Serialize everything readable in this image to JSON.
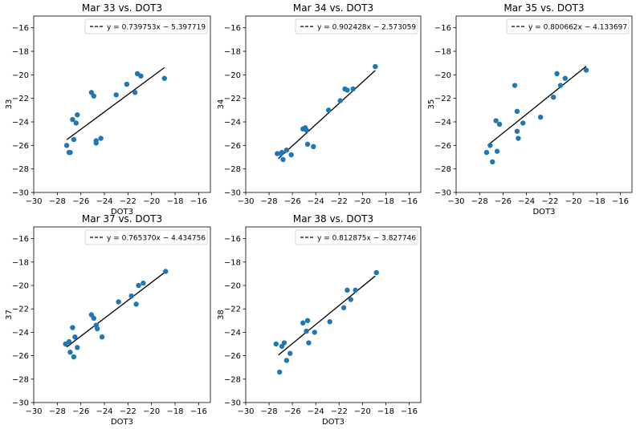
{
  "chart_data": [
    {
      "type": "scatter",
      "title": "Mar 33 vs. DOT3",
      "xlabel": "DOT3",
      "ylabel": "33",
      "xlim": [
        -30,
        -15
      ],
      "ylim": [
        -30,
        -15
      ],
      "xticks": [
        "−30",
        "−28",
        "−26",
        "−24",
        "−22",
        "−20",
        "−18",
        "−16"
      ],
      "yticks": [
        "−30",
        "−28",
        "−26",
        "−24",
        "−22",
        "−20",
        "−18",
        "−16"
      ],
      "grid": false,
      "legend_position": "top-right",
      "fit": {
        "slope": 0.739753,
        "intercept": -5.397719,
        "label": "y = 0.739753x − 5.397719",
        "x_range": [
          -27.2,
          -18.9
        ]
      },
      "points": {
        "x": [
          -27.2,
          -27.0,
          -26.9,
          -26.7,
          -26.6,
          -26.4,
          -26.3,
          -25.1,
          -24.9,
          -24.7,
          -24.7,
          -24.3,
          -23.0,
          -22.1,
          -21.4,
          -21.2,
          -20.9,
          -18.9
        ],
        "y": [
          -26.0,
          -26.6,
          -26.6,
          -23.8,
          -25.5,
          -24.1,
          -23.4,
          -21.5,
          -21.8,
          -25.6,
          -25.8,
          -25.4,
          -21.7,
          -20.8,
          -21.5,
          -19.9,
          -20.1,
          -20.3
        ]
      }
    },
    {
      "type": "scatter",
      "title": "Mar 34 vs. DOT3",
      "xlabel": "",
      "ylabel": "34",
      "xlim": [
        -30,
        -15
      ],
      "ylim": [
        -30,
        -15
      ],
      "xticks": [
        "−30",
        "−28",
        "−26",
        "−24",
        "−22",
        "−20",
        "−18",
        "−16"
      ],
      "yticks": [
        "−30",
        "−28",
        "−26",
        "−24",
        "−22",
        "−20",
        "−18",
        "−16"
      ],
      "grid": false,
      "legend_position": "top-right",
      "fit": {
        "slope": 0.902428,
        "intercept": -2.573059,
        "label": "y = 0.902428x − 2.573059",
        "x_range": [
          -27.2,
          -18.9
        ]
      },
      "points": {
        "x": [
          -27.3,
          -27.0,
          -26.9,
          -26.8,
          -26.5,
          -26.1,
          -25.1,
          -24.9,
          -24.8,
          -24.7,
          -24.2,
          -22.9,
          -21.9,
          -21.5,
          -21.3,
          -20.8,
          -18.9
        ],
        "y": [
          -26.7,
          -26.7,
          -26.6,
          -27.2,
          -26.4,
          -26.8,
          -24.6,
          -24.5,
          -24.7,
          -25.9,
          -26.1,
          -23.0,
          -22.2,
          -21.2,
          -21.3,
          -21.2,
          -19.3
        ]
      }
    },
    {
      "type": "scatter",
      "title": "Mar 35 vs. DOT3",
      "xlabel": "DOT3",
      "ylabel": "35",
      "xlim": [
        -30,
        -15
      ],
      "ylim": [
        -30,
        -15
      ],
      "xticks": [
        "−30",
        "−28",
        "−26",
        "−24",
        "−22",
        "−20",
        "−18",
        "−16"
      ],
      "yticks": [
        "−30",
        "−28",
        "−26",
        "−24",
        "−22",
        "−20",
        "−18",
        "−16"
      ],
      "grid": false,
      "legend_position": "top-right",
      "fit": {
        "slope": 0.800662,
        "intercept": -4.133697,
        "label": "y = 0.800662x − 4.133697",
        "x_range": [
          -27.2,
          -18.9
        ]
      },
      "points": {
        "x": [
          -27.4,
          -27.1,
          -26.9,
          -26.6,
          -26.5,
          -26.3,
          -25.0,
          -24.8,
          -24.8,
          -24.7,
          -24.3,
          -22.8,
          -21.7,
          -21.4,
          -21.1,
          -20.7,
          -18.9
        ],
        "y": [
          -26.6,
          -26.0,
          -27.4,
          -23.9,
          -26.5,
          -24.2,
          -20.9,
          -23.1,
          -24.8,
          -25.4,
          -24.1,
          -23.6,
          -21.9,
          -19.9,
          -20.9,
          -20.3,
          -19.6
        ]
      }
    },
    {
      "type": "scatter",
      "title": "Mar 37 vs. DOT3",
      "xlabel": "DOT3",
      "ylabel": "37",
      "xlim": [
        -30,
        -15
      ],
      "ylim": [
        -30,
        -15
      ],
      "xticks": [
        "−30",
        "−28",
        "−26",
        "−24",
        "−22",
        "−20",
        "−18",
        "−16"
      ],
      "yticks": [
        "−30",
        "−28",
        "−26",
        "−24",
        "−22",
        "−20",
        "−18",
        "−16"
      ],
      "grid": false,
      "legend_position": "top-right",
      "fit": {
        "slope": 0.76537,
        "intercept": -4.434756,
        "label": "y = 0.765370x − 4.434756",
        "x_range": [
          -27.2,
          -18.9
        ]
      },
      "points": {
        "x": [
          -27.3,
          -27.0,
          -26.9,
          -26.7,
          -26.6,
          -26.5,
          -26.3,
          -25.1,
          -24.9,
          -24.7,
          -24.6,
          -24.2,
          -22.8,
          -21.7,
          -21.3,
          -21.1,
          -20.7,
          -18.8
        ],
        "y": [
          -25.0,
          -24.8,
          -25.7,
          -23.6,
          -26.1,
          -24.4,
          -25.3,
          -22.5,
          -22.8,
          -23.4,
          -23.7,
          -24.4,
          -21.4,
          -20.9,
          -21.6,
          -20.0,
          -19.8,
          -18.8
        ]
      }
    },
    {
      "type": "scatter",
      "title": "Mar 38 vs. DOT3",
      "xlabel": "DOT3",
      "ylabel": "38",
      "xlim": [
        -30,
        -15
      ],
      "ylim": [
        -30,
        -15
      ],
      "xticks": [
        "−30",
        "−28",
        "−26",
        "−24",
        "−22",
        "−20",
        "−18",
        "−16"
      ],
      "yticks": [
        "−30",
        "−28",
        "−26",
        "−24",
        "−22",
        "−20",
        "−18",
        "−16"
      ],
      "grid": false,
      "legend_position": "top-right",
      "fit": {
        "slope": 0.812875,
        "intercept": -3.827746,
        "label": "y = 0.812875x − 3.827746",
        "x_range": [
          -27.2,
          -18.9
        ]
      },
      "points": {
        "x": [
          -27.4,
          -27.1,
          -26.9,
          -26.7,
          -26.5,
          -26.2,
          -25.1,
          -24.8,
          -24.7,
          -24.6,
          -24.1,
          -22.8,
          -21.6,
          -21.3,
          -21.0,
          -20.6,
          -18.8
        ],
        "y": [
          -25.0,
          -27.4,
          -25.2,
          -24.9,
          -26.4,
          -25.8,
          -23.2,
          -23.9,
          -23.0,
          -24.9,
          -24.0,
          -23.1,
          -21.9,
          -20.4,
          -21.2,
          -20.4,
          -18.9
        ]
      }
    }
  ],
  "colors": {
    "points": "#1f77b4",
    "fit_line": "#000000",
    "axes": "#000000",
    "legend_border": "#cccccc",
    "background": "#ffffff"
  }
}
